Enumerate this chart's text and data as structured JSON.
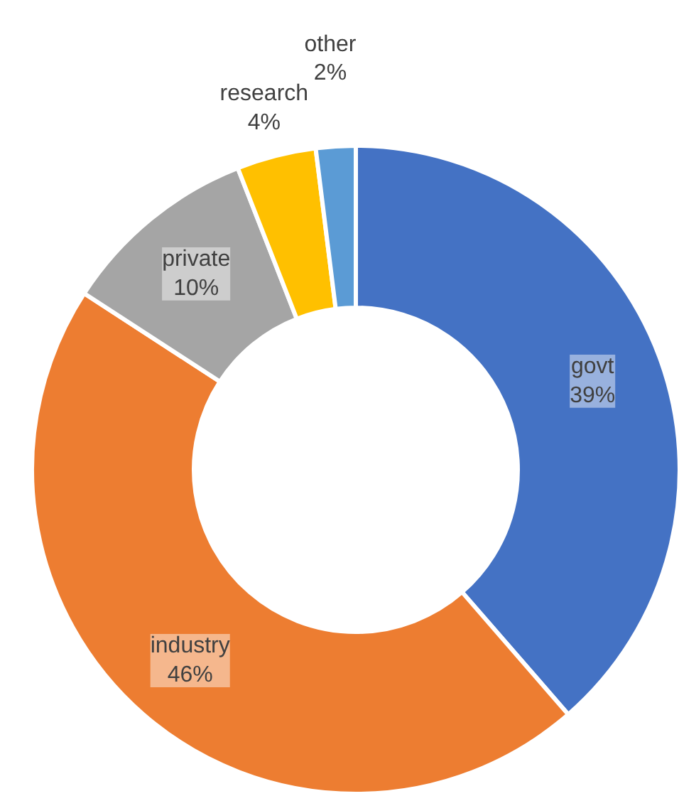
{
  "chart_data": {
    "type": "donut",
    "categories": [
      "govt",
      "industry",
      "private",
      "research",
      "other"
    ],
    "values": [
      39,
      46,
      10,
      4,
      2
    ],
    "value_labels": [
      "39%",
      "46%",
      "10%",
      "4%",
      "2%"
    ],
    "colors": [
      "#4472c4",
      "#ed7d31",
      "#a5a5a5",
      "#ffc000",
      "#5b9bd5"
    ],
    "legend": false
  }
}
